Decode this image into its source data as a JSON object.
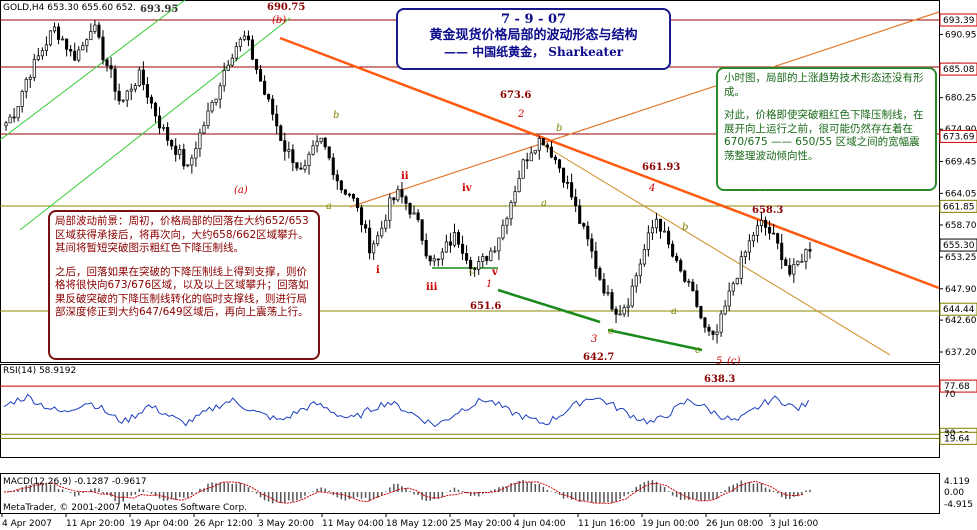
{
  "header": {
    "main_label": "GOLD,H4 653.30 655.60 652.",
    "rsi_label": "RSI(14) 58.9192",
    "macd_label": "MACD(12,26,9) -0.1287 -0.9617",
    "footer": "MetaTrader, © 2001-2007 MetaQuotes Software Corp."
  },
  "title_box": {
    "line1": "7 - 9 - 07",
    "line2": "黄金现货价格局部的波动形态与结构",
    "line3": "—— 中国纸黄金， Sharkeater"
  },
  "left_note": {
    "para1": "局部波动前景：周初，价格局部的回落在大约652/653区域获得承接后，将再次向，大约658/662区域攀升。其间将暂短突破图示粗红色下降压制线。",
    "para2": "之后，回落如果在突破的下降压制线上得到支撑，则价格将很快向673/676区域，以及以上区域攀升；回落如果反破突破的下降压制线转化的临时支撑线，则进行局部深度修正到大约647/649区域后，再向上震荡上行。"
  },
  "right_note": {
    "para1": "小时图，局部的上涨趋势技术形态还没有形成。",
    "para2": "对此，价格即使突破粗红色下降压制线，在展开向上运行之前，很可能仍然存在着在670/675 —— 650/55 区域之间的宽幅震荡整理波动倾向性。"
  },
  "colors": {
    "candle_up": "#000000",
    "candle_down": "#000000",
    "resistance": "#ff5a10",
    "thin_orange": "#cc6a20",
    "channel_green": "#33cc33",
    "support_green": "#1a8a1a",
    "hline_red": "#990000",
    "hline_olive": "#8a8a00",
    "label_red": "#cc0000",
    "label_olive": "#808000",
    "label_dark": "#333333"
  },
  "chart_data": {
    "type": "candlestick",
    "instrument": "GOLD",
    "timeframe": "H4",
    "ohlc_header": [
      653.3,
      655.6,
      652.0
    ],
    "y_ticks": [
      690.95,
      685.6,
      680.25,
      674.9,
      669.45,
      664.05,
      658.7,
      653.25,
      647.9,
      642.6,
      637.2
    ],
    "x_labels": [
      "4 Apr 2007",
      "11 Apr 20:00",
      "19 Apr 04:00",
      "26 Apr 12:00",
      "3 May 20:00",
      "11 May 04:00",
      "18 May 12:00",
      "25 May 20:00",
      "4 Jun 04:00",
      "11 Jun 16:00",
      "19 Jun 00:00",
      "26 Jun 08:00",
      "3 Jul 16:00"
    ],
    "price_tags": [
      {
        "label": "693.39",
        "value": 693.39,
        "color": "#cc0000"
      },
      {
        "label": "685.08",
        "value": 685.08,
        "color": "#cc0000"
      },
      {
        "label": "673.69",
        "value": 673.69,
        "color": "#cc0000"
      },
      {
        "label": "661.85",
        "value": 661.85,
        "color": "#808000"
      },
      {
        "label": "655.30",
        "value": 655.3,
        "color": "#000000"
      },
      {
        "label": "644.44",
        "value": 644.44,
        "color": "#808000"
      }
    ],
    "price_levels": [
      {
        "label": "693.95",
        "value": 693.95
      },
      {
        "label": "690.75",
        "value": 690.75
      },
      {
        "label": "673.6",
        "value": 673.6
      },
      {
        "label": "661.93",
        "value": 661.93
      },
      {
        "label": "658.3",
        "value": 658.3
      },
      {
        "label": "651.6",
        "value": 651.6
      },
      {
        "label": "642.7",
        "value": 642.7
      },
      {
        "label": "638.3",
        "value": 638.3
      }
    ],
    "wave_labels": [
      "(a)",
      "(b)",
      "i",
      "ii",
      "iii",
      "iv",
      "v",
      "1",
      "2",
      "3",
      "4",
      "5",
      "(c)",
      "(1)",
      "a",
      "b",
      "c"
    ],
    "close_series": [
      676,
      678,
      683,
      686,
      689,
      692,
      690,
      687,
      689,
      693,
      688,
      684,
      679,
      682,
      684,
      680,
      676,
      673,
      671,
      668,
      673,
      677,
      681,
      686,
      689,
      690.5,
      686,
      681,
      677,
      672,
      670,
      667,
      671,
      673,
      669,
      665,
      664,
      660,
      655,
      657,
      662,
      664,
      662,
      659,
      654,
      652,
      655,
      657,
      654,
      651,
      653,
      655,
      659,
      664,
      669,
      672,
      673.5,
      671,
      668,
      664,
      659,
      655,
      650,
      646,
      644,
      646,
      651,
      656,
      660,
      656,
      652,
      649,
      646,
      641,
      639,
      644,
      649,
      653,
      657,
      659,
      657,
      654,
      650,
      653,
      655
    ],
    "rsi": {
      "period": 14,
      "value": 58.9192,
      "levels": [
        {
          "label": "77.68",
          "value": 77.68
        },
        {
          "label": "24.11",
          "value": 24.11
        },
        {
          "label": "19.64",
          "value": 19.64
        }
      ],
      "ticks": [
        "70",
        "30"
      ],
      "series": [
        55,
        62,
        66,
        58,
        52,
        48,
        55,
        60,
        54,
        44,
        38,
        46,
        56,
        50,
        43,
        36,
        42,
        50,
        57,
        62,
        55,
        48,
        44,
        39,
        46,
        53,
        58,
        52,
        45,
        41,
        48,
        55,
        60,
        54,
        47,
        40,
        34,
        42,
        51,
        57,
        63,
        58,
        50,
        45,
        40,
        36,
        43,
        52,
        60,
        66,
        61,
        54,
        47,
        41,
        37,
        44,
        53,
        62,
        57,
        49,
        43,
        38,
        47,
        56,
        64,
        60,
        52,
        58.9
      ]
    },
    "macd": {
      "fast": 12,
      "slow": 26,
      "signal": 9,
      "main": -0.1287,
      "signal_value": -0.9617,
      "ticks": [
        "4.119",
        "0.00",
        "-4.915"
      ]
    }
  }
}
